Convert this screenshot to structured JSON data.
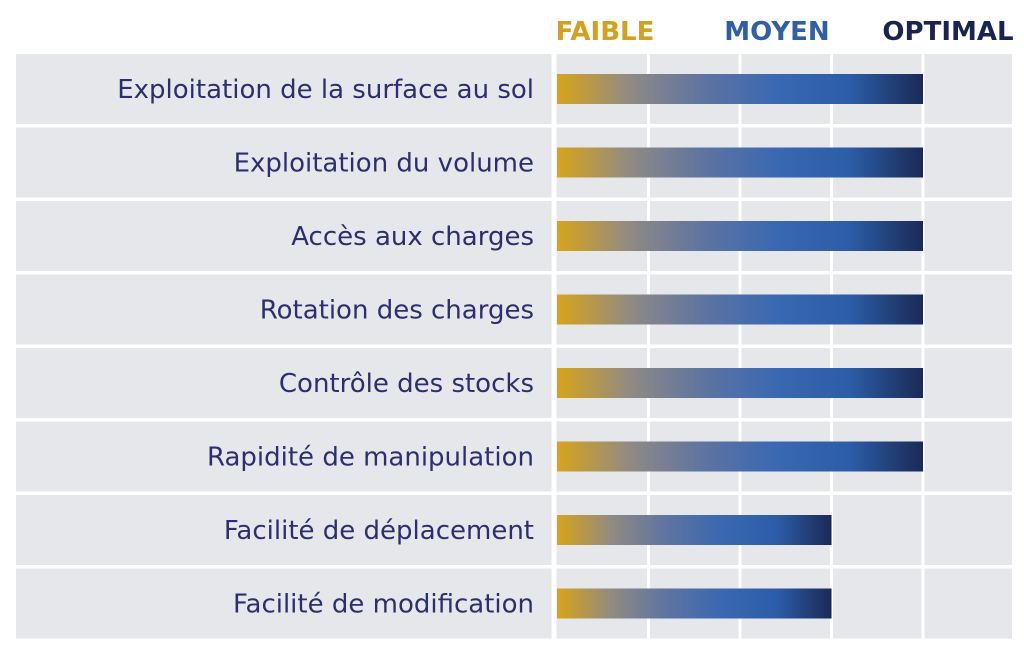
{
  "chart_data": {
    "type": "bar",
    "orientation": "horizontal",
    "levels": [
      "FAIBLE",
      "MOYEN",
      "OPTIMAL"
    ],
    "categories": [
      "Exploitation de la surface au sol",
      "Exploitation du volume",
      "Accès aux charges",
      "Rotation des charges",
      "Contrôle des stocks",
      "Rapidité de manipulation",
      "Facilité de déplacement",
      "Facilité de modification"
    ],
    "values": [
      4,
      4,
      4,
      4,
      4,
      4,
      3,
      3
    ],
    "xlim": [
      0,
      5
    ],
    "grid": true,
    "colors": {
      "faible": "#d4a11e",
      "moyen": "#2f5fa6",
      "optimal": "#1a2452",
      "row_background": "#e6e7ea",
      "row_label": "#2b2f6e",
      "bar_gradient": [
        "#d9a41a",
        "#8f8a84",
        "#5e74a1",
        "#3a68b2",
        "#2c5da8",
        "#1a2a55"
      ]
    }
  }
}
